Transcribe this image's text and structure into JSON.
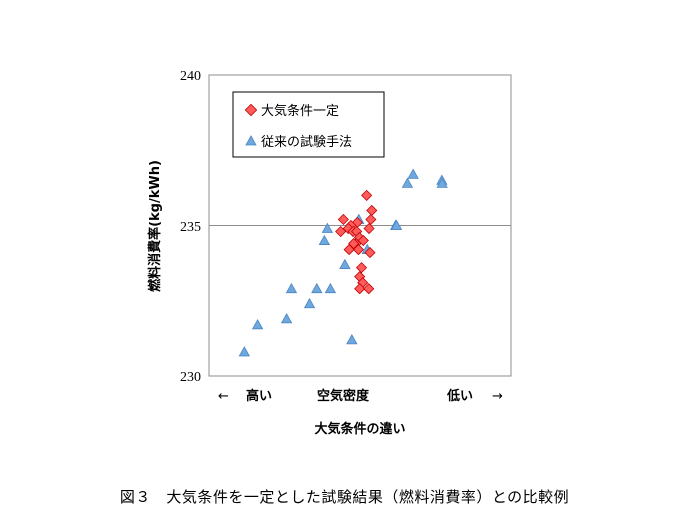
{
  "caption": "図３　大気条件を一定とした試験結果（燃料消費率）との比較例",
  "chart_data": {
    "type": "scatter",
    "ylabel": "燃料消費率(kg/kWh)",
    "xlabel": "大気条件の違い",
    "x_annotations": {
      "left_arrow": "←",
      "left": "高い",
      "center": "空気密度",
      "right": "低い",
      "right_arrow": "→"
    },
    "ylim": [
      230,
      240
    ],
    "yticks": [
      "230",
      "235",
      "240"
    ],
    "grid": "horizontal line at 235",
    "legend_position": "top-left",
    "series": [
      {
        "name": "大気条件一定",
        "marker": "diamond",
        "color": "#ff5b5b",
        "points": [
          [
            0.522,
            236.0
          ],
          [
            0.539,
            235.5
          ],
          [
            0.445,
            235.2
          ],
          [
            0.536,
            235.2
          ],
          [
            0.491,
            235.1
          ],
          [
            0.47,
            235.0
          ],
          [
            0.461,
            234.9
          ],
          [
            0.477,
            234.8
          ],
          [
            0.489,
            234.8
          ],
          [
            0.436,
            234.8
          ],
          [
            0.498,
            234.6
          ],
          [
            0.53,
            234.9
          ],
          [
            0.511,
            234.5
          ],
          [
            0.487,
            234.4
          ],
          [
            0.479,
            234.4
          ],
          [
            0.464,
            234.2
          ],
          [
            0.495,
            234.2
          ],
          [
            0.533,
            234.1
          ],
          [
            0.505,
            233.6
          ],
          [
            0.499,
            233.3
          ],
          [
            0.509,
            233.1
          ],
          [
            0.499,
            232.9
          ],
          [
            0.529,
            232.9
          ]
        ]
      },
      {
        "name": "従来の試験手法",
        "marker": "triangle",
        "color": "#6fa8dc",
        "points": [
          [
            0.117,
            230.8
          ],
          [
            0.161,
            231.7
          ],
          [
            0.257,
            231.9
          ],
          [
            0.273,
            232.9
          ],
          [
            0.333,
            232.4
          ],
          [
            0.357,
            232.9
          ],
          [
            0.402,
            232.9
          ],
          [
            0.473,
            231.2
          ],
          [
            0.45,
            233.7
          ],
          [
            0.382,
            234.5
          ],
          [
            0.392,
            234.9
          ],
          [
            0.496,
            235.2
          ],
          [
            0.524,
            234.2
          ],
          [
            0.618,
            235.0
          ],
          [
            0.621,
            235.0
          ],
          [
            0.657,
            236.4
          ],
          [
            0.676,
            236.7
          ],
          [
            0.771,
            236.5
          ],
          [
            0.772,
            236.4
          ]
        ]
      }
    ]
  }
}
